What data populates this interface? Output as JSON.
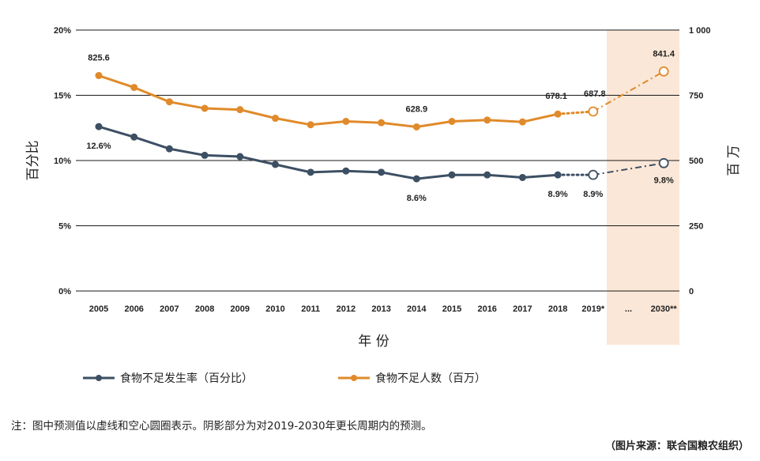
{
  "chart_data": {
    "type": "line",
    "categories": [
      "2005",
      "2006",
      "2007",
      "2008",
      "2009",
      "2010",
      "2011",
      "2012",
      "2013",
      "2014",
      "2015",
      "2016",
      "2017",
      "2018",
      "2019*",
      "...",
      "2030**"
    ],
    "xlabel": "年 份",
    "ylabel_left": "百分比",
    "ylabel_right": "百 万",
    "y_left": {
      "range": [
        0,
        20
      ],
      "ticks": [
        "0%",
        "5%",
        "10%",
        "15%",
        "20%"
      ]
    },
    "y_right": {
      "range": [
        0,
        1000
      ],
      "ticks": [
        "0",
        "250",
        "500",
        "750",
        "1 000"
      ]
    },
    "grid": "horizontal",
    "forecast_shaded": [
      "2019*",
      "2030**"
    ],
    "series": [
      {
        "name": "食物不足发生率（百分比）",
        "axis": "left",
        "color": "#3d4f63",
        "values": [
          12.6,
          11.8,
          10.9,
          10.4,
          10.3,
          9.7,
          9.1,
          9.2,
          9.1,
          8.6,
          8.9,
          8.9,
          8.7,
          8.9,
          8.9,
          null,
          9.8
        ],
        "labels": {
          "2005": "12.6%",
          "2014": "8.6%",
          "2018": "8.9%",
          "2019*": "8.9%",
          "2030**": "9.8%"
        }
      },
      {
        "name": "食物不足人数（百万）",
        "axis": "right",
        "color": "#e08a2a",
        "values": [
          825.6,
          780,
          725,
          700,
          695,
          662,
          637,
          650,
          645,
          628.9,
          650,
          655,
          648,
          678.1,
          687.8,
          null,
          841.4
        ],
        "labels": {
          "2005": "825.6",
          "2014": "628.9",
          "2018": "678.1",
          "2019*": "687.8",
          "2030**": "841.4"
        }
      }
    ]
  },
  "note": "注：图中预测值以虚线和空心圆圈表示。阴影部分为对2019-2030年更长周期内的预测。",
  "source": "（图片来源：联合国粮农组织）"
}
